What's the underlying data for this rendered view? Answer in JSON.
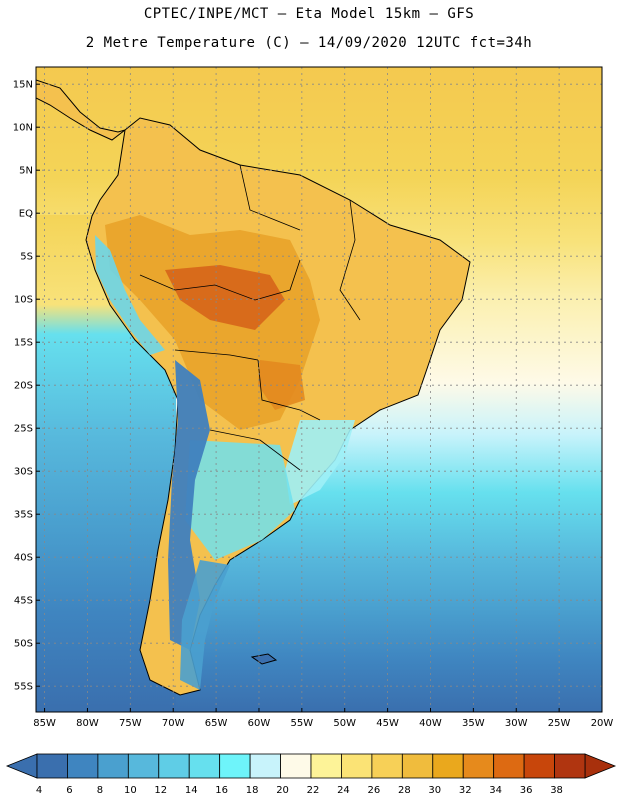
{
  "header": {
    "line1": "CPTEC/INPE/MCT –  Eta Model 15km – GFS",
    "line2": "2 Metre Temperature (C) – 14/09/2020 12UTC fct=34h"
  },
  "map": {
    "lat_labels": [
      "15N",
      "10N",
      "5N",
      "EQ",
      "5S",
      "10S",
      "15S",
      "20S",
      "25S",
      "30S",
      "35S",
      "40S",
      "45S",
      "50S",
      "55S"
    ],
    "lat_values": [
      15,
      10,
      5,
      0,
      -5,
      -10,
      -15,
      -20,
      -25,
      -30,
      -35,
      -40,
      -45,
      -50,
      -55
    ],
    "lon_labels": [
      "85W",
      "80W",
      "75W",
      "70W",
      "65W",
      "60W",
      "55W",
      "50W",
      "45W",
      "40W",
      "35W",
      "30W",
      "25W",
      "20W"
    ],
    "lon_values": [
      -85,
      -80,
      -75,
      -70,
      -65,
      -60,
      -55,
      -50,
      -45,
      -40,
      -35,
      -30,
      -25,
      -20
    ],
    "lat_range": [
      -58,
      17
    ],
    "lon_range": [
      -86,
      -20
    ],
    "grid": true
  },
  "colorbar": {
    "labels": [
      "4",
      "6",
      "8",
      "10",
      "12",
      "14",
      "16",
      "18",
      "20",
      "22",
      "24",
      "26",
      "28",
      "30",
      "32",
      "34",
      "36",
      "38"
    ],
    "colors": [
      "#3a6fae",
      "#3f85c0",
      "#4aa0cf",
      "#57b8dc",
      "#5fcde6",
      "#66e0ee",
      "#6ef4fa",
      "#c8f3fb",
      "#fefae8",
      "#fdf398",
      "#fbe375",
      "#f7d057",
      "#f0bc3d",
      "#eaa81d",
      "#e68a1c",
      "#dd6a12",
      "#c8460b",
      "#b03510"
    ],
    "low_color": "#3a6fae",
    "high_color": "#a8300c"
  }
}
